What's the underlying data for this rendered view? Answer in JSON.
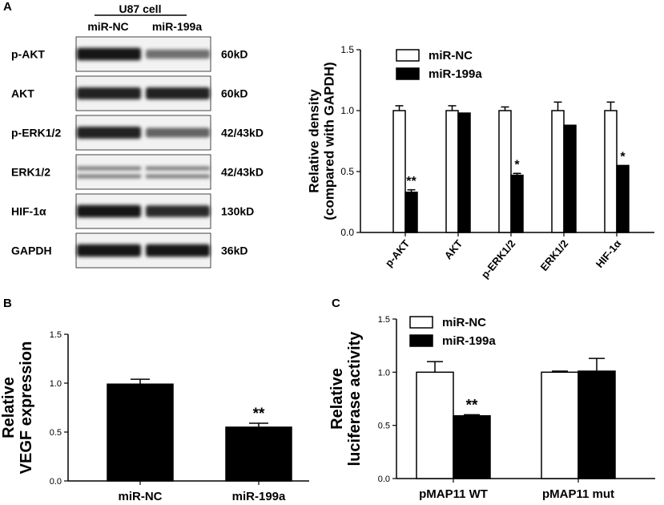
{
  "panels": {
    "a": "A",
    "b": "B",
    "c": "C"
  },
  "western_blot": {
    "cell_line": "U87 cell",
    "lanes": [
      "miR-NC",
      "miR-199a"
    ],
    "rows": [
      {
        "protein": "p-AKT",
        "size": "60kD",
        "intensity": [
          0.95,
          0.55
        ]
      },
      {
        "protein": "AKT",
        "size": "60kD",
        "intensity": [
          0.9,
          0.9
        ]
      },
      {
        "protein": "p-ERK1/2",
        "size": "42/43kD",
        "intensity": [
          0.9,
          0.6
        ]
      },
      {
        "protein": "ERK1/2",
        "size": "42/43kD",
        "intensity": [
          0.5,
          0.5
        ]
      },
      {
        "protein": "HIF-1α",
        "size": "130kD",
        "intensity": [
          0.95,
          0.85
        ]
      },
      {
        "protein": "GAPDH",
        "size": "36kD",
        "intensity": [
          0.95,
          0.95
        ]
      }
    ]
  },
  "chart_data": [
    {
      "panel": "A",
      "type": "bar",
      "categories": [
        "p-AKT",
        "AKT",
        "p-ERK1/2",
        "ERK1/2",
        "HIF-1α"
      ],
      "series": [
        {
          "name": "miR-NC",
          "values": [
            1.0,
            1.0,
            1.0,
            1.0,
            1.0
          ],
          "errors": [
            0.04,
            0.04,
            0.03,
            0.07,
            0.07
          ],
          "color": "#ffffff"
        },
        {
          "name": "miR-199a",
          "values": [
            0.33,
            0.98,
            0.47,
            0.88,
            0.55
          ],
          "errors": [
            0.02,
            0.0,
            0.015,
            0.0,
            0.0
          ],
          "color": "#000000"
        }
      ],
      "annotations": [
        "**",
        "",
        "*",
        "",
        "*"
      ],
      "ylabel": [
        "Relative density",
        "(compared with GAPDH)"
      ],
      "xlabel": "",
      "ylim": [
        0,
        1.5
      ],
      "yticks": [
        "0.0",
        "0.5",
        "1.0",
        "1.5"
      ],
      "legend_position": "top-left",
      "rotated_tick_labels": true
    },
    {
      "panel": "B",
      "type": "bar",
      "categories": [
        "miR-NC",
        "miR-199a"
      ],
      "series": [
        {
          "values": [
            0.99,
            0.55
          ],
          "errors": [
            0.05,
            0.04
          ],
          "color": "#000000"
        }
      ],
      "annotations": [
        "",
        "**"
      ],
      "ylabel": [
        "Relative",
        "VEGF expression"
      ],
      "xlabel": "",
      "ylim": [
        0,
        1.5
      ],
      "yticks": [
        "0.0",
        "0.5",
        "1.0",
        "1.5"
      ],
      "legend_position": "none"
    },
    {
      "panel": "C",
      "type": "bar",
      "categories": [
        "pMAP11 WT",
        "pMAP11 mut"
      ],
      "series": [
        {
          "name": "miR-NC",
          "values": [
            1.0,
            1.0
          ],
          "errors": [
            0.1,
            0.01
          ],
          "color": "#ffffff"
        },
        {
          "name": "miR-199a",
          "values": [
            0.59,
            1.01
          ],
          "errors": [
            0.01,
            0.12
          ],
          "color": "#000000"
        }
      ],
      "annotations": [
        "**",
        ""
      ],
      "ylabel": [
        "Relative",
        "luciferase activity"
      ],
      "xlabel": "",
      "ylim": [
        0,
        1.5
      ],
      "yticks": [
        "0.0",
        "0.5",
        "1.0",
        "1.5"
      ],
      "legend_position": "top-left"
    }
  ]
}
